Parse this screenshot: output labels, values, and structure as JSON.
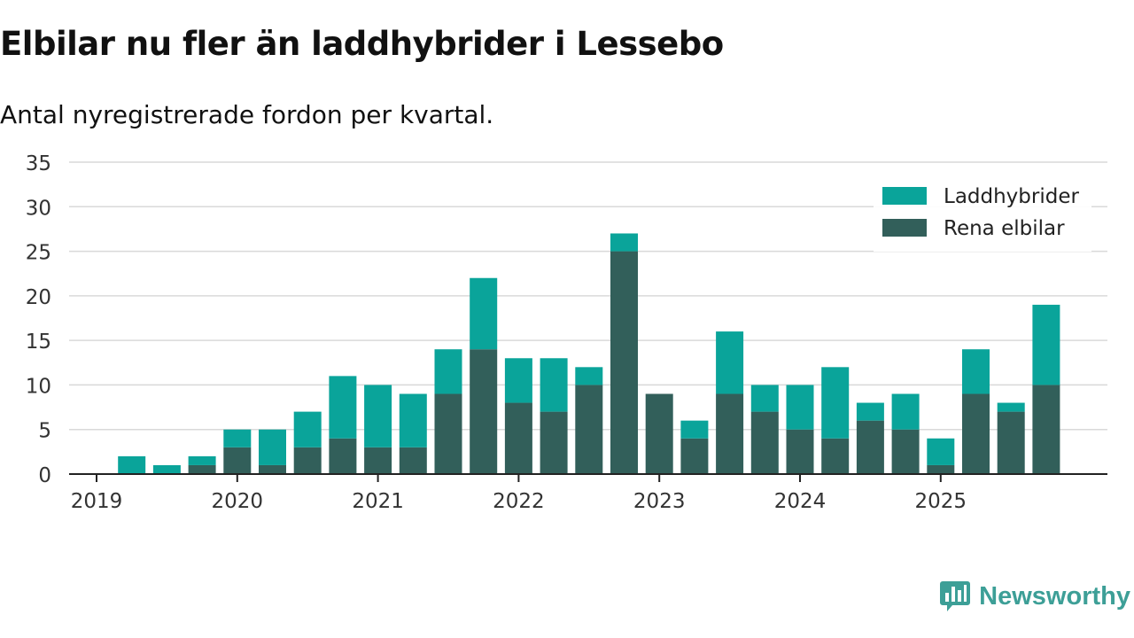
{
  "title": "Elbilar nu fler än laddhybrider i Lessebo",
  "subtitle": "Antal nyregistrerade fordon per kvartal.",
  "brand": {
    "name": "Newsworthy",
    "icon": "newsworthy-logo-icon"
  },
  "colors": {
    "phev": "#0aa49a",
    "bev": "#325f5a",
    "grid": "#d9d9d9",
    "axis": "#222222",
    "text": "#333333"
  },
  "chart_data": {
    "type": "bar",
    "stacked": true,
    "x_tick_labels": [
      "2019",
      "2020",
      "2021",
      "2022",
      "2023",
      "2024",
      "2025"
    ],
    "categories": [
      "2019 Q1",
      "2019 Q2",
      "2019 Q3",
      "2019 Q4",
      "2020 Q1",
      "2020 Q2",
      "2020 Q3",
      "2020 Q4",
      "2021 Q1",
      "2021 Q2",
      "2021 Q3",
      "2021 Q4",
      "2022 Q1",
      "2022 Q2",
      "2022 Q3",
      "2022 Q4",
      "2023 Q1",
      "2023 Q2",
      "2023 Q3",
      "2023 Q4",
      "2024 Q1",
      "2024 Q2",
      "2024 Q3",
      "2024 Q4",
      "2025 Q1",
      "2025 Q2",
      "2025 Q3",
      "2025 Q4"
    ],
    "series": [
      {
        "name": "Rena elbilar",
        "color": "#325f5a",
        "values": [
          0,
          0,
          0,
          1,
          3,
          1,
          3,
          4,
          3,
          3,
          9,
          14,
          8,
          7,
          10,
          25,
          9,
          4,
          9,
          7,
          5,
          4,
          6,
          5,
          1,
          9,
          7,
          10
        ]
      },
      {
        "name": "Laddhybrider",
        "color": "#0aa49a",
        "values": [
          0,
          2,
          1,
          1,
          2,
          4,
          4,
          7,
          7,
          6,
          5,
          8,
          5,
          6,
          2,
          2,
          0,
          2,
          7,
          3,
          5,
          8,
          2,
          4,
          3,
          5,
          1,
          9
        ]
      }
    ],
    "legend": [
      {
        "name": "Laddhybrider",
        "color": "#0aa49a"
      },
      {
        "name": "Rena elbilar",
        "color": "#325f5a"
      }
    ],
    "legend_position": "top-right",
    "y_ticks": [
      0,
      5,
      10,
      15,
      20,
      25,
      30,
      35
    ],
    "ylim": [
      0,
      35
    ],
    "grid": true,
    "xlabel": "",
    "ylabel": ""
  }
}
